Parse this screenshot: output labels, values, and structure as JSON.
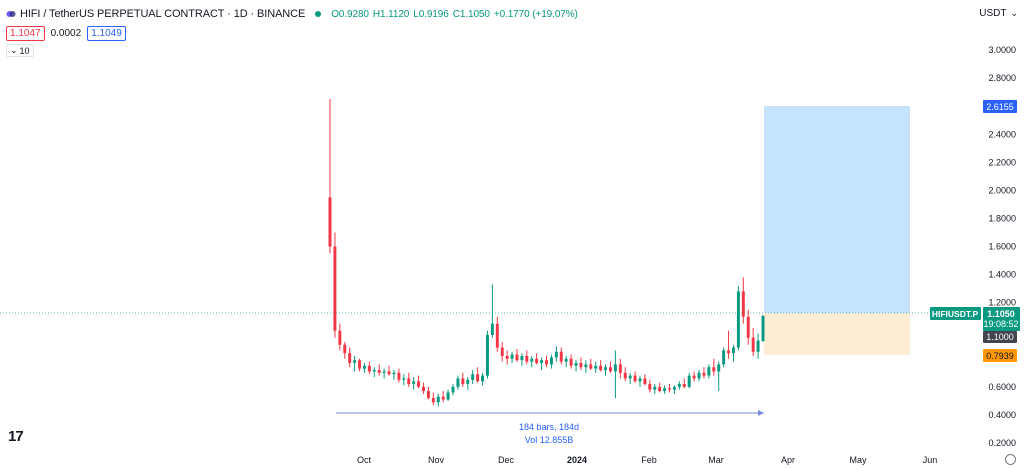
{
  "legend": {
    "title": "HIFI / TetherUS PERPETUAL CONTRACT · 1D · BINANCE",
    "open": "O0.9280",
    "high": "H1.1120",
    "low": "L0.9196",
    "close": "C1.1050",
    "change": "+0.1770 (+19.07%)",
    "up_color": "#089981"
  },
  "quote": {
    "bid": "1.1047",
    "spread": "0.0002",
    "ask": "1.1049"
  },
  "volume_toggle": "10",
  "currency": "USDT",
  "price_labels": {
    "current_symbol": "HIFIUSDT.P",
    "current_price": "1.1050",
    "countdown": "19:08:52",
    "entry": "1.1000",
    "target": "2.6155",
    "stop": "0.7939"
  },
  "range_measure": {
    "bars": "184 bars, 184d",
    "volume": "Vol 12.855B"
  },
  "chart_data": {
    "type": "candlestick",
    "y_axis": {
      "labels": [
        "3.0000",
        "2.8000",
        "2.6000",
        "2.4000",
        "2.2000",
        "2.0000",
        "1.8000",
        "1.6000",
        "1.4000",
        "1.2000",
        "1.0000",
        "0.8000",
        "0.6000",
        "0.4000",
        "0.2000"
      ],
      "values": [
        3.0,
        2.8,
        2.6,
        2.4,
        2.2,
        2.0,
        1.8,
        1.6,
        1.4,
        1.2,
        1.0,
        0.8,
        0.6,
        0.4,
        0.2
      ],
      "ylim": [
        0.15,
        3.2
      ]
    },
    "x_axis": {
      "labels": [
        "Oct",
        "Nov",
        "Dec",
        "2024",
        "Feb",
        "Mar",
        "Apr",
        "May",
        "Jun"
      ]
    },
    "series": [
      {
        "open": 1.95,
        "high": 2.65,
        "low": 1.55,
        "close": 1.6
      },
      {
        "open": 1.6,
        "high": 1.7,
        "low": 0.95,
        "close": 1.0
      },
      {
        "open": 1.0,
        "high": 1.05,
        "low": 0.86,
        "close": 0.9
      },
      {
        "open": 0.9,
        "high": 0.92,
        "low": 0.8,
        "close": 0.84
      },
      {
        "open": 0.84,
        "high": 0.88,
        "low": 0.74,
        "close": 0.77
      },
      {
        "open": 0.77,
        "high": 0.82,
        "low": 0.71,
        "close": 0.79
      },
      {
        "open": 0.79,
        "high": 0.8,
        "low": 0.71,
        "close": 0.73
      },
      {
        "open": 0.73,
        "high": 0.77,
        "low": 0.7,
        "close": 0.75
      },
      {
        "open": 0.75,
        "high": 0.78,
        "low": 0.69,
        "close": 0.71
      },
      {
        "open": 0.71,
        "high": 0.74,
        "low": 0.67,
        "close": 0.72
      },
      {
        "open": 0.72,
        "high": 0.76,
        "low": 0.68,
        "close": 0.7
      },
      {
        "open": 0.7,
        "high": 0.73,
        "low": 0.66,
        "close": 0.71
      },
      {
        "open": 0.71,
        "high": 0.75,
        "low": 0.68,
        "close": 0.69
      },
      {
        "open": 0.69,
        "high": 0.72,
        "low": 0.65,
        "close": 0.7
      },
      {
        "open": 0.7,
        "high": 0.73,
        "low": 0.63,
        "close": 0.65
      },
      {
        "open": 0.65,
        "high": 0.69,
        "low": 0.61,
        "close": 0.66
      },
      {
        "open": 0.66,
        "high": 0.7,
        "low": 0.6,
        "close": 0.62
      },
      {
        "open": 0.62,
        "high": 0.67,
        "low": 0.58,
        "close": 0.64
      },
      {
        "open": 0.64,
        "high": 0.68,
        "low": 0.59,
        "close": 0.6
      },
      {
        "open": 0.6,
        "high": 0.63,
        "low": 0.55,
        "close": 0.57
      },
      {
        "open": 0.57,
        "high": 0.6,
        "low": 0.51,
        "close": 0.52
      },
      {
        "open": 0.52,
        "high": 0.56,
        "low": 0.47,
        "close": 0.49
      },
      {
        "open": 0.49,
        "high": 0.55,
        "low": 0.46,
        "close": 0.53
      },
      {
        "open": 0.53,
        "high": 0.57,
        "low": 0.49,
        "close": 0.51
      },
      {
        "open": 0.51,
        "high": 0.58,
        "low": 0.5,
        "close": 0.56
      },
      {
        "open": 0.56,
        "high": 0.62,
        "low": 0.54,
        "close": 0.6
      },
      {
        "open": 0.6,
        "high": 0.68,
        "low": 0.58,
        "close": 0.66
      },
      {
        "open": 0.66,
        "high": 0.7,
        "low": 0.6,
        "close": 0.62
      },
      {
        "open": 0.62,
        "high": 0.67,
        "low": 0.58,
        "close": 0.65
      },
      {
        "open": 0.65,
        "high": 0.72,
        "low": 0.62,
        "close": 0.69
      },
      {
        "open": 0.69,
        "high": 0.74,
        "low": 0.63,
        "close": 0.64
      },
      {
        "open": 0.64,
        "high": 0.7,
        "low": 0.61,
        "close": 0.68
      },
      {
        "open": 0.68,
        "high": 1.0,
        "low": 0.66,
        "close": 0.97
      },
      {
        "open": 0.97,
        "high": 1.33,
        "low": 0.95,
        "close": 1.05
      },
      {
        "open": 1.05,
        "high": 1.1,
        "low": 0.85,
        "close": 0.88
      },
      {
        "open": 0.88,
        "high": 0.92,
        "low": 0.78,
        "close": 0.82
      },
      {
        "open": 0.82,
        "high": 0.86,
        "low": 0.76,
        "close": 0.8
      },
      {
        "open": 0.8,
        "high": 0.85,
        "low": 0.77,
        "close": 0.83
      },
      {
        "open": 0.83,
        "high": 0.87,
        "low": 0.78,
        "close": 0.79
      },
      {
        "open": 0.79,
        "high": 0.84,
        "low": 0.75,
        "close": 0.82
      },
      {
        "open": 0.82,
        "high": 0.86,
        "low": 0.76,
        "close": 0.78
      },
      {
        "open": 0.78,
        "high": 0.82,
        "low": 0.74,
        "close": 0.8
      },
      {
        "open": 0.8,
        "high": 0.84,
        "low": 0.76,
        "close": 0.77
      },
      {
        "open": 0.77,
        "high": 0.81,
        "low": 0.72,
        "close": 0.79
      },
      {
        "open": 0.79,
        "high": 0.82,
        "low": 0.74,
        "close": 0.76
      },
      {
        "open": 0.76,
        "high": 0.83,
        "low": 0.73,
        "close": 0.81
      },
      {
        "open": 0.81,
        "high": 0.89,
        "low": 0.78,
        "close": 0.85
      },
      {
        "open": 0.85,
        "high": 0.88,
        "low": 0.76,
        "close": 0.78
      },
      {
        "open": 0.78,
        "high": 0.82,
        "low": 0.74,
        "close": 0.8
      },
      {
        "open": 0.8,
        "high": 0.83,
        "low": 0.73,
        "close": 0.75
      },
      {
        "open": 0.75,
        "high": 0.79,
        "low": 0.71,
        "close": 0.77
      },
      {
        "open": 0.77,
        "high": 0.81,
        "low": 0.72,
        "close": 0.74
      },
      {
        "open": 0.74,
        "high": 0.79,
        "low": 0.7,
        "close": 0.76
      },
      {
        "open": 0.76,
        "high": 0.8,
        "low": 0.72,
        "close": 0.73
      },
      {
        "open": 0.73,
        "high": 0.78,
        "low": 0.7,
        "close": 0.75
      },
      {
        "open": 0.75,
        "high": 0.79,
        "low": 0.71,
        "close": 0.72
      },
      {
        "open": 0.72,
        "high": 0.76,
        "low": 0.68,
        "close": 0.74
      },
      {
        "open": 0.74,
        "high": 0.78,
        "low": 0.7,
        "close": 0.71
      },
      {
        "open": 0.71,
        "high": 0.86,
        "low": 0.52,
        "close": 0.76
      },
      {
        "open": 0.76,
        "high": 0.8,
        "low": 0.66,
        "close": 0.7
      },
      {
        "open": 0.7,
        "high": 0.74,
        "low": 0.64,
        "close": 0.66
      },
      {
        "open": 0.66,
        "high": 0.7,
        "low": 0.62,
        "close": 0.68
      },
      {
        "open": 0.68,
        "high": 0.71,
        "low": 0.63,
        "close": 0.64
      },
      {
        "open": 0.64,
        "high": 0.68,
        "low": 0.6,
        "close": 0.66
      },
      {
        "open": 0.66,
        "high": 0.69,
        "low": 0.61,
        "close": 0.62
      },
      {
        "open": 0.62,
        "high": 0.65,
        "low": 0.56,
        "close": 0.58
      },
      {
        "open": 0.58,
        "high": 0.62,
        "low": 0.55,
        "close": 0.6
      },
      {
        "open": 0.6,
        "high": 0.63,
        "low": 0.56,
        "close": 0.57
      },
      {
        "open": 0.57,
        "high": 0.61,
        "low": 0.55,
        "close": 0.59
      },
      {
        "open": 0.59,
        "high": 0.62,
        "low": 0.56,
        "close": 0.58
      },
      {
        "open": 0.58,
        "high": 0.61,
        "low": 0.55,
        "close": 0.6
      },
      {
        "open": 0.6,
        "high": 0.64,
        "low": 0.58,
        "close": 0.62
      },
      {
        "open": 0.62,
        "high": 0.66,
        "low": 0.59,
        "close": 0.6
      },
      {
        "open": 0.6,
        "high": 0.7,
        "low": 0.59,
        "close": 0.68
      },
      {
        "open": 0.68,
        "high": 0.71,
        "low": 0.64,
        "close": 0.66
      },
      {
        "open": 0.66,
        "high": 0.72,
        "low": 0.64,
        "close": 0.7
      },
      {
        "open": 0.7,
        "high": 0.74,
        "low": 0.66,
        "close": 0.68
      },
      {
        "open": 0.68,
        "high": 0.76,
        "low": 0.66,
        "close": 0.74
      },
      {
        "open": 0.74,
        "high": 0.8,
        "low": 0.68,
        "close": 0.71
      },
      {
        "open": 0.71,
        "high": 0.78,
        "low": 0.57,
        "close": 0.76
      },
      {
        "open": 0.76,
        "high": 0.88,
        "low": 0.74,
        "close": 0.86
      },
      {
        "open": 0.86,
        "high": 1.0,
        "low": 0.8,
        "close": 0.84
      },
      {
        "open": 0.84,
        "high": 0.9,
        "low": 0.78,
        "close": 0.88
      },
      {
        "open": 0.88,
        "high": 1.32,
        "low": 0.86,
        "close": 1.28
      },
      {
        "open": 1.28,
        "high": 1.38,
        "low": 1.05,
        "close": 1.1
      },
      {
        "open": 1.1,
        "high": 1.15,
        "low": 0.9,
        "close": 0.95
      },
      {
        "open": 0.95,
        "high": 1.02,
        "low": 0.82,
        "close": 0.85
      },
      {
        "open": 0.85,
        "high": 0.98,
        "low": 0.8,
        "close": 0.93
      },
      {
        "open": 0.928,
        "high": 1.112,
        "low": 0.9196,
        "close": 1.105
      }
    ],
    "up_color": "#089981",
    "down_color": "#f23645"
  }
}
